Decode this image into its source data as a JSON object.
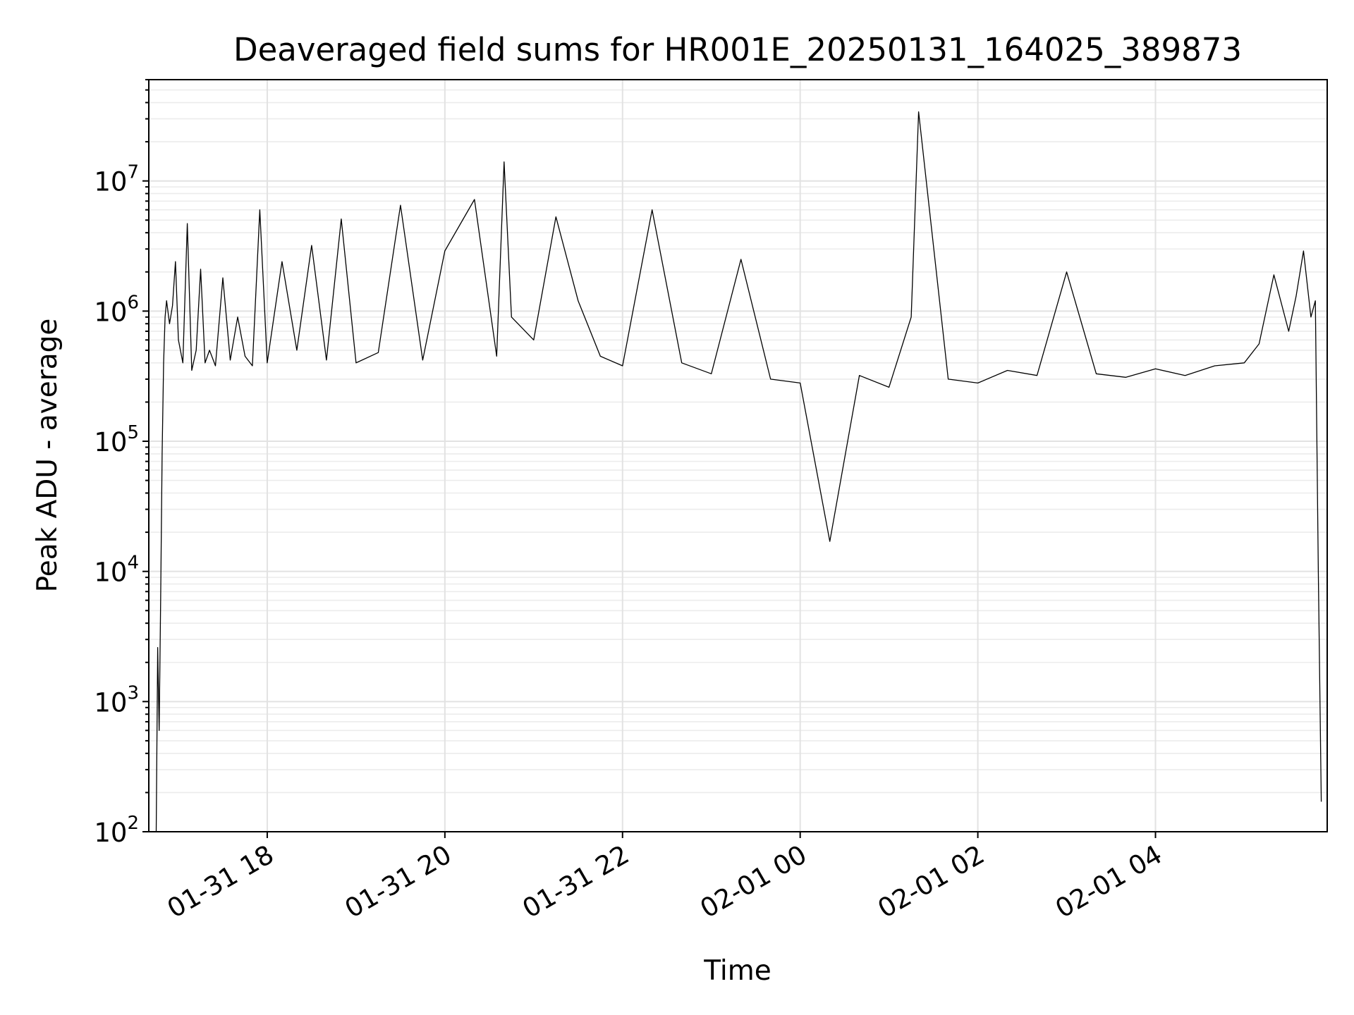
{
  "chart_data": {
    "type": "line",
    "title": "Deaveraged field sums for HR001E_20250131_164025_389873",
    "xlabel": "Time",
    "ylabel": "Peak ADU - average",
    "yscale": "log",
    "ylim": [
      100,
      60000000
    ],
    "xlim": [
      "2025-01-31 16:40",
      "2025-02-01 05:56"
    ],
    "grid": true,
    "line_color": "#000000",
    "x_ticks": [
      {
        "value": "2025-01-31 18:00",
        "label": "01-31 18"
      },
      {
        "value": "2025-01-31 20:00",
        "label": "01-31 20"
      },
      {
        "value": "2025-01-31 22:00",
        "label": "01-31 22"
      },
      {
        "value": "2025-02-01 00:00",
        "label": "02-01 00"
      },
      {
        "value": "2025-02-01 02:00",
        "label": "02-01 02"
      },
      {
        "value": "2025-02-01 04:00",
        "label": "02-01 04"
      }
    ],
    "y_ticks": [
      {
        "value": 100,
        "base": "10",
        "exp": "2"
      },
      {
        "value": 1000,
        "base": "10",
        "exp": "3"
      },
      {
        "value": 10000,
        "base": "10",
        "exp": "4"
      },
      {
        "value": 100000,
        "base": "10",
        "exp": "5"
      },
      {
        "value": 1000000,
        "base": "10",
        "exp": "6"
      },
      {
        "value": 10000000,
        "base": "10",
        "exp": "7"
      }
    ],
    "series": [
      {
        "x": [
          "2025-01-31 16:45",
          "2025-01-31 16:46",
          "2025-01-31 16:47",
          "2025-01-31 16:48",
          "2025-01-31 16:49",
          "2025-01-31 16:50",
          "2025-01-31 16:51",
          "2025-01-31 16:52",
          "2025-01-31 16:54",
          "2025-01-31 16:56",
          "2025-01-31 16:58",
          "2025-01-31 17:00",
          "2025-01-31 17:03",
          "2025-01-31 17:06",
          "2025-01-31 17:09",
          "2025-01-31 17:12",
          "2025-01-31 17:15",
          "2025-01-31 17:18",
          "2025-01-31 17:21",
          "2025-01-31 17:25",
          "2025-01-31 17:30",
          "2025-01-31 17:35",
          "2025-01-31 17:40",
          "2025-01-31 17:45",
          "2025-01-31 17:50",
          "2025-01-31 17:55",
          "2025-01-31 18:00",
          "2025-01-31 18:10",
          "2025-01-31 18:20",
          "2025-01-31 18:30",
          "2025-01-31 18:40",
          "2025-01-31 18:50",
          "2025-01-31 19:00",
          "2025-01-31 19:15",
          "2025-01-31 19:30",
          "2025-01-31 19:45",
          "2025-01-31 20:00",
          "2025-01-31 20:20",
          "2025-01-31 20:35",
          "2025-01-31 20:40",
          "2025-01-31 20:45",
          "2025-01-31 21:00",
          "2025-01-31 21:15",
          "2025-01-31 21:30",
          "2025-01-31 21:45",
          "2025-01-31 22:00",
          "2025-01-31 22:20",
          "2025-01-31 22:40",
          "2025-01-31 23:00",
          "2025-01-31 23:20",
          "2025-01-31 23:40",
          "2025-02-01 00:00",
          "2025-02-01 00:20",
          "2025-02-01 00:40",
          "2025-02-01 01:00",
          "2025-02-01 01:15",
          "2025-02-01 01:20",
          "2025-02-01 01:40",
          "2025-02-01 02:00",
          "2025-02-01 02:20",
          "2025-02-01 02:40",
          "2025-02-01 03:00",
          "2025-02-01 03:20",
          "2025-02-01 03:40",
          "2025-02-01 04:00",
          "2025-02-01 04:20",
          "2025-02-01 04:40",
          "2025-02-01 05:00",
          "2025-02-01 05:10",
          "2025-02-01 05:20",
          "2025-02-01 05:30",
          "2025-02-01 05:35",
          "2025-02-01 05:40",
          "2025-02-01 05:45",
          "2025-02-01 05:48",
          "2025-02-01 05:50",
          "2025-02-01 05:52"
        ],
        "values": [
          100,
          2600,
          600,
          6000,
          80000,
          400000,
          900000,
          1200000,
          800000,
          1100000,
          2400000,
          600000,
          400000,
          4700000,
          350000,
          500000,
          2100000,
          400000,
          500000,
          380000,
          1800000,
          420000,
          900000,
          450000,
          380000,
          6000000,
          400000,
          2400000,
          500000,
          3200000,
          420000,
          5100000,
          400000,
          480000,
          6500000,
          420000,
          2900000,
          7200000,
          450000,
          14000000,
          900000,
          600000,
          5300000,
          1200000,
          450000,
          380000,
          6000000,
          400000,
          330000,
          2500000,
          300000,
          280000,
          17000,
          320000,
          260000,
          900000,
          34000000,
          300000,
          280000,
          350000,
          320000,
          2000000,
          330000,
          310000,
          360000,
          320000,
          380000,
          400000,
          560000,
          1900000,
          700000,
          1300000,
          2900000,
          900000,
          1200000,
          10000,
          170
        ]
      }
    ]
  }
}
